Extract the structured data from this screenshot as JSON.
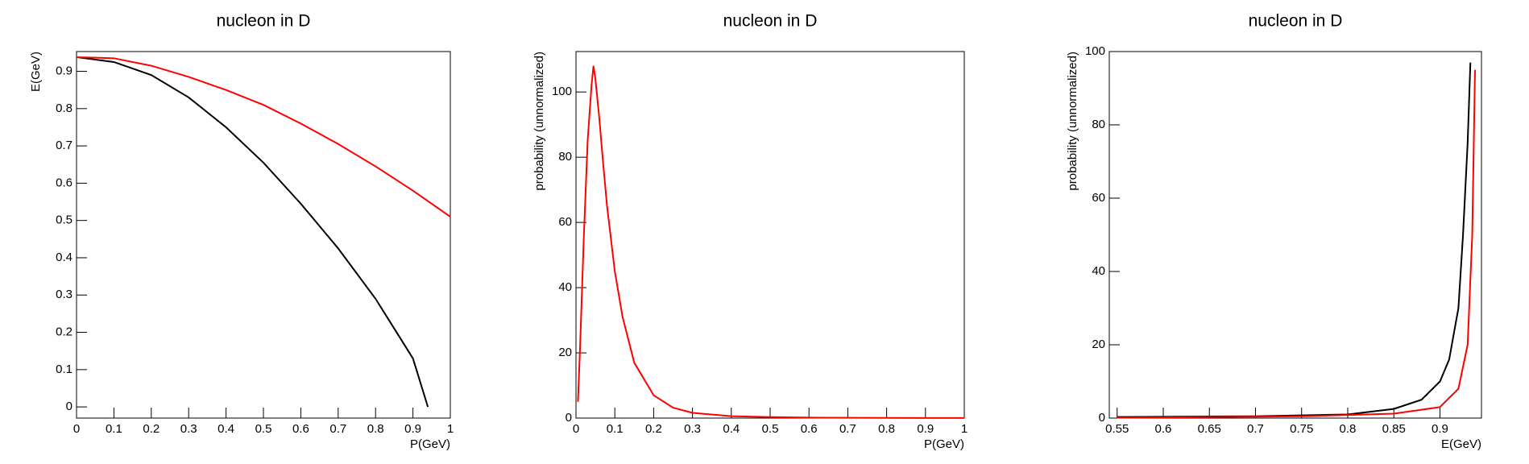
{
  "chart_data": [
    {
      "type": "line",
      "title": "nucleon in D",
      "xlabel": "P(GeV)",
      "ylabel": "E(GeV)",
      "xlim": [
        0,
        1
      ],
      "ylim": [
        -0.03,
        0.953
      ],
      "xticks": [
        0,
        0.1,
        0.2,
        0.3,
        0.4,
        0.5,
        0.6,
        0.7,
        0.8,
        0.9,
        1
      ],
      "yticks": [
        0,
        0.1,
        0.2,
        0.3,
        0.4,
        0.5,
        0.6,
        0.7,
        0.8,
        0.9
      ],
      "series": [
        {
          "color": "#000000",
          "x": [
            0,
            0.1,
            0.2,
            0.3,
            0.4,
            0.5,
            0.6,
            0.7,
            0.8,
            0.9,
            0.94
          ],
          "values": [
            0.938,
            0.925,
            0.89,
            0.83,
            0.75,
            0.655,
            0.545,
            0.425,
            0.29,
            0.13,
            0
          ]
        },
        {
          "color": "#ff0000",
          "x": [
            0,
            0.1,
            0.2,
            0.3,
            0.4,
            0.5,
            0.6,
            0.7,
            0.8,
            0.9,
            1
          ],
          "values": [
            0.938,
            0.935,
            0.915,
            0.885,
            0.85,
            0.81,
            0.76,
            0.705,
            0.645,
            0.58,
            0.51
          ]
        }
      ]
    },
    {
      "type": "line",
      "title": "nucleon in D",
      "xlabel": "P(GeV)",
      "ylabel": "probability (unnormalized)",
      "xlim": [
        0,
        1
      ],
      "ylim": [
        0,
        112.4
      ],
      "xticks": [
        0,
        0.1,
        0.2,
        0.3,
        0.4,
        0.5,
        0.6,
        0.7,
        0.8,
        0.9,
        1
      ],
      "yticks": [
        0,
        20,
        40,
        60,
        80,
        100
      ],
      "series": [
        {
          "color": "#ff0000",
          "x": [
            0.005,
            0.01,
            0.02,
            0.03,
            0.04,
            0.045,
            0.05,
            0.06,
            0.07,
            0.08,
            0.1,
            0.12,
            0.15,
            0.2,
            0.25,
            0.3,
            0.4,
            0.5,
            0.6,
            0.8,
            1
          ],
          "values": [
            5,
            20,
            55,
            85,
            102,
            108,
            104,
            92,
            78,
            65,
            45,
            31,
            17,
            7,
            3.2,
            1.6,
            0.6,
            0.3,
            0.15,
            0.05,
            0.02
          ]
        }
      ]
    },
    {
      "type": "line",
      "title": "nucleon in D",
      "xlabel": "E(GeV)",
      "ylabel": "probability (unnormalized)",
      "xlim": [
        0.5415,
        0.945
      ],
      "ylim": [
        0,
        100
      ],
      "xticks": [
        0.55,
        0.6,
        0.65,
        0.7,
        0.75,
        0.8,
        0.85,
        0.9
      ],
      "yticks": [
        0,
        20,
        40,
        60,
        80,
        100
      ],
      "series": [
        {
          "color": "#000000",
          "x": [
            0.55,
            0.7,
            0.8,
            0.85,
            0.88,
            0.9,
            0.91,
            0.92,
            0.925,
            0.93,
            0.933
          ],
          "values": [
            0.3,
            0.5,
            1,
            2.5,
            5,
            10,
            16,
            30,
            50,
            75,
            97
          ]
        },
        {
          "color": "#ff0000",
          "x": [
            0.55,
            0.75,
            0.85,
            0.9,
            0.92,
            0.93,
            0.935,
            0.937,
            0.938
          ],
          "values": [
            0.1,
            0.5,
            1.2,
            3,
            8,
            20,
            50,
            80,
            95
          ]
        }
      ]
    }
  ]
}
